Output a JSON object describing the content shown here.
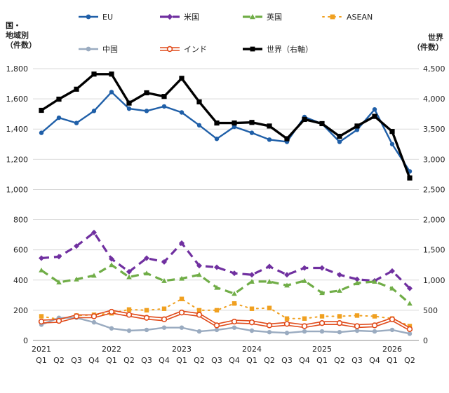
{
  "chart_data": {
    "type": "line",
    "left_axis_title": [
      "国・",
      "地域別",
      "（件数）"
    ],
    "right_axis_title": [
      "世界",
      "（件数）"
    ],
    "left_ylim": [
      0,
      1800
    ],
    "left_ticks": [
      "0",
      "200",
      "400",
      "600",
      "800",
      "1,000",
      "1,200",
      "1,400",
      "1,600",
      "1,800"
    ],
    "right_ylim": [
      0,
      4500
    ],
    "right_ticks": [
      "0",
      "500",
      "1,000",
      "1,500",
      "2,000",
      "2,500",
      "3,000",
      "3,500",
      "4,000",
      "4,500"
    ],
    "grid": true,
    "x_quarters": [
      "Q1",
      "Q2",
      "Q3",
      "Q4",
      "Q1",
      "Q2",
      "Q3",
      "Q4",
      "Q1",
      "Q2",
      "Q3",
      "Q4",
      "Q1",
      "Q2",
      "Q3",
      "Q4",
      "Q1",
      "Q2",
      "Q3",
      "Q4",
      "Q1",
      "Q2"
    ],
    "x_years": [
      {
        "label": "2021",
        "index": 0
      },
      {
        "label": "2022",
        "index": 4
      },
      {
        "label": "2023",
        "index": 8
      },
      {
        "label": "2024",
        "index": 12
      },
      {
        "label": "2025",
        "index": 16
      },
      {
        "label": "2026",
        "index": 20
      }
    ],
    "series": [
      {
        "name": "EU",
        "axis": "left",
        "color": "#1f5fa8",
        "style": "solid",
        "marker": "circle",
        "values": [
          1375,
          1475,
          1440,
          1520,
          1645,
          1535,
          1520,
          1550,
          1510,
          1425,
          1335,
          1415,
          1375,
          1330,
          1315,
          1480,
          1435,
          1315,
          1395,
          1530,
          1300,
          1120
        ]
      },
      {
        "name": "米国",
        "axis": "left",
        "color": "#7030a0",
        "style": "dash",
        "marker": "diamond",
        "values": [
          545,
          555,
          625,
          715,
          540,
          455,
          545,
          520,
          645,
          495,
          485,
          445,
          435,
          490,
          435,
          480,
          480,
          435,
          405,
          395,
          460,
          345
        ]
      },
      {
        "name": "英国",
        "axis": "left",
        "color": "#70ad47",
        "style": "dash",
        "marker": "triangle",
        "values": [
          465,
          385,
          405,
          430,
          500,
          420,
          445,
          395,
          410,
          435,
          350,
          310,
          390,
          390,
          365,
          395,
          315,
          330,
          380,
          390,
          345,
          245
        ]
      },
      {
        "name": "ASEAN",
        "axis": "left",
        "color": "#f0a020",
        "style": "dot",
        "marker": "square",
        "values": [
          160,
          140,
          165,
          170,
          180,
          205,
          200,
          210,
          275,
          200,
          200,
          245,
          210,
          215,
          145,
          145,
          160,
          160,
          165,
          160,
          145,
          95
        ]
      },
      {
        "name": "中国",
        "axis": "left",
        "color": "#9aabc0",
        "style": "solid",
        "marker": "circle",
        "values": [
          105,
          150,
          150,
          120,
          80,
          65,
          70,
          85,
          85,
          60,
          70,
          85,
          65,
          55,
          50,
          60,
          60,
          55,
          65,
          60,
          70,
          45
        ]
      },
      {
        "name": "インド",
        "axis": "left",
        "color": "#e04a1a",
        "style": "double",
        "marker": "circle",
        "values": [
          125,
          130,
          160,
          160,
          190,
          170,
          150,
          140,
          185,
          170,
          100,
          125,
          120,
          100,
          110,
          95,
          115,
          115,
          95,
          100,
          140,
          75
        ]
      },
      {
        "name": "世界（右軸）",
        "axis": "right",
        "color": "#000000",
        "style": "solid",
        "marker": "square",
        "values": [
          3810,
          3995,
          4160,
          4410,
          4410,
          3930,
          4100,
          4040,
          4340,
          3950,
          3600,
          3600,
          3610,
          3550,
          3340,
          3660,
          3590,
          3380,
          3550,
          3710,
          3460,
          2690
        ]
      }
    ]
  }
}
